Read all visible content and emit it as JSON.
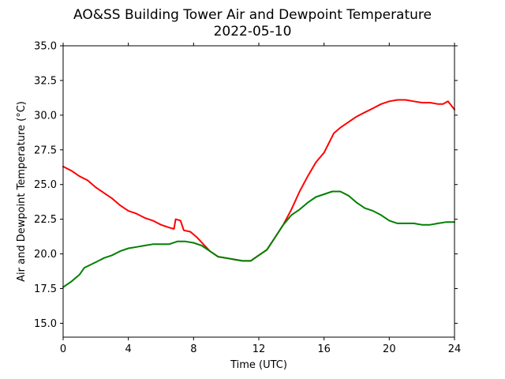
{
  "chart_data": {
    "type": "line",
    "title": "AO&SS Building Tower Air and Dewpoint Temperature",
    "subtitle": "2022-05-10",
    "xlabel": "Time (UTC)",
    "ylabel": "Air and Dewpoint Temperature (°C)",
    "xlim": [
      0,
      24
    ],
    "ylim": [
      14.0,
      35.0
    ],
    "xticks": [
      0,
      4,
      8,
      12,
      16,
      20,
      24
    ],
    "xtick_labels": [
      "0",
      "4",
      "8",
      "12",
      "16",
      "20",
      "24"
    ],
    "yticks": [
      15.0,
      17.5,
      20.0,
      22.5,
      25.0,
      27.5,
      30.0,
      32.5,
      35.0
    ],
    "ytick_labels": [
      "15.0",
      "17.5",
      "20.0",
      "22.5",
      "25.0",
      "27.5",
      "30.0",
      "32.5",
      "35.0"
    ],
    "grid": false,
    "legend": "none",
    "series": [
      {
        "color": "#ff0000",
        "points": [
          [
            0.0,
            26.3
          ],
          [
            0.5,
            26.0
          ],
          [
            1.0,
            25.6
          ],
          [
            1.5,
            25.3
          ],
          [
            2.0,
            24.8
          ],
          [
            2.5,
            24.4
          ],
          [
            3.0,
            24.0
          ],
          [
            3.5,
            23.5
          ],
          [
            4.0,
            23.1
          ],
          [
            4.5,
            22.9
          ],
          [
            5.0,
            22.6
          ],
          [
            5.5,
            22.4
          ],
          [
            6.0,
            22.1
          ],
          [
            6.5,
            21.9
          ],
          [
            6.8,
            21.8
          ],
          [
            6.9,
            22.5
          ],
          [
            7.2,
            22.4
          ],
          [
            7.4,
            21.7
          ],
          [
            7.8,
            21.6
          ],
          [
            8.2,
            21.2
          ],
          [
            8.6,
            20.7
          ],
          [
            9.0,
            20.2
          ],
          [
            9.5,
            19.8
          ],
          [
            10.0,
            19.7
          ],
          [
            10.5,
            19.6
          ],
          [
            11.0,
            19.5
          ],
          [
            11.5,
            19.5
          ],
          [
            12.0,
            19.9
          ],
          [
            12.5,
            20.3
          ],
          [
            13.0,
            21.2
          ],
          [
            13.5,
            22.1
          ],
          [
            14.0,
            23.2
          ],
          [
            14.5,
            24.5
          ],
          [
            15.0,
            25.6
          ],
          [
            15.5,
            26.6
          ],
          [
            16.0,
            27.3
          ],
          [
            16.3,
            28.0
          ],
          [
            16.6,
            28.7
          ],
          [
            17.0,
            29.1
          ],
          [
            17.5,
            29.5
          ],
          [
            18.0,
            29.9
          ],
          [
            18.5,
            30.2
          ],
          [
            19.0,
            30.5
          ],
          [
            19.5,
            30.8
          ],
          [
            20.0,
            31.0
          ],
          [
            20.5,
            31.1
          ],
          [
            21.0,
            31.1
          ],
          [
            21.5,
            31.0
          ],
          [
            22.0,
            30.9
          ],
          [
            22.5,
            30.9
          ],
          [
            23.0,
            30.8
          ],
          [
            23.3,
            30.8
          ],
          [
            23.6,
            31.0
          ],
          [
            24.0,
            30.4
          ]
        ]
      },
      {
        "color": "#008000",
        "points": [
          [
            0.0,
            17.6
          ],
          [
            0.5,
            18.0
          ],
          [
            1.0,
            18.5
          ],
          [
            1.3,
            19.0
          ],
          [
            2.0,
            19.4
          ],
          [
            2.5,
            19.7
          ],
          [
            3.0,
            19.9
          ],
          [
            3.5,
            20.2
          ],
          [
            4.0,
            20.4
          ],
          [
            4.5,
            20.5
          ],
          [
            5.0,
            20.6
          ],
          [
            5.5,
            20.7
          ],
          [
            6.0,
            20.7
          ],
          [
            6.5,
            20.7
          ],
          [
            7.0,
            20.9
          ],
          [
            7.5,
            20.9
          ],
          [
            8.0,
            20.8
          ],
          [
            8.5,
            20.6
          ],
          [
            9.0,
            20.2
          ],
          [
            9.5,
            19.8
          ],
          [
            10.0,
            19.7
          ],
          [
            10.5,
            19.6
          ],
          [
            11.0,
            19.5
          ],
          [
            11.5,
            19.5
          ],
          [
            12.0,
            19.9
          ],
          [
            12.5,
            20.3
          ],
          [
            13.0,
            21.2
          ],
          [
            13.5,
            22.1
          ],
          [
            14.0,
            22.8
          ],
          [
            14.5,
            23.2
          ],
          [
            15.0,
            23.7
          ],
          [
            15.5,
            24.1
          ],
          [
            16.0,
            24.3
          ],
          [
            16.5,
            24.5
          ],
          [
            17.0,
            24.5
          ],
          [
            17.5,
            24.2
          ],
          [
            18.0,
            23.7
          ],
          [
            18.5,
            23.3
          ],
          [
            19.0,
            23.1
          ],
          [
            19.5,
            22.8
          ],
          [
            20.0,
            22.4
          ],
          [
            20.5,
            22.2
          ],
          [
            21.0,
            22.2
          ],
          [
            21.5,
            22.2
          ],
          [
            22.0,
            22.1
          ],
          [
            22.5,
            22.1
          ],
          [
            23.0,
            22.2
          ],
          [
            23.5,
            22.3
          ],
          [
            24.0,
            22.3
          ]
        ]
      }
    ]
  }
}
